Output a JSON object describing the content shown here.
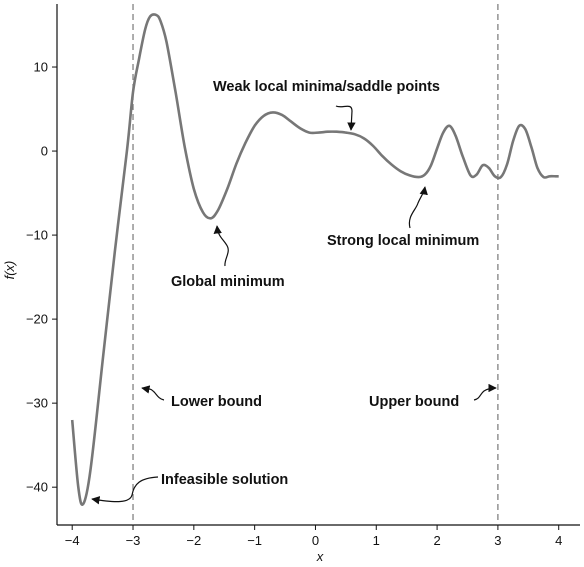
{
  "chart_data": {
    "type": "line",
    "xlabel": "x",
    "ylabel": "f(x)",
    "xlim": [
      -4.25,
      4.35
    ],
    "ylim": [
      -44.5,
      17.5
    ],
    "x_ticks": [
      -4,
      -3,
      -2,
      -1,
      0,
      1,
      2,
      3,
      4
    ],
    "y_ticks": [
      10,
      0,
      -10,
      -20,
      -30,
      -40
    ],
    "x_tick_labels": [
      "−4",
      "−3",
      "−2",
      "−1",
      "0",
      "1",
      "2",
      "3",
      "4"
    ],
    "y_tick_labels": [
      "10",
      "0",
      "−10",
      "−20",
      "−30",
      "−40"
    ],
    "grid": false,
    "line_color": "#777777",
    "series": [
      {
        "x": [
          -4.0,
          -3.9,
          -3.82,
          -3.7,
          -3.5,
          -3.3,
          -3.1,
          -3.0,
          -2.9,
          -2.8,
          -2.72,
          -2.62,
          -2.55,
          -2.45,
          -2.3,
          -2.15,
          -2.0,
          -1.85,
          -1.72,
          -1.6,
          -1.45,
          -1.3,
          -1.15,
          -1.0,
          -0.85,
          -0.7,
          -0.55,
          -0.4,
          -0.25,
          -0.1,
          0.05,
          0.2,
          0.35,
          0.5,
          0.65,
          0.8,
          0.95,
          1.1,
          1.25,
          1.4,
          1.55,
          1.7,
          1.8,
          1.9,
          2.0,
          2.1,
          2.2,
          2.3,
          2.42,
          2.55,
          2.65,
          2.75,
          2.85,
          2.95,
          3.05,
          3.15,
          3.25,
          3.35,
          3.45,
          3.55,
          3.65,
          3.75,
          3.85,
          3.95,
          4.0
        ],
        "y": [
          -32,
          -40,
          -42,
          -38,
          -25,
          -12,
          0,
          7,
          11,
          14.5,
          16,
          16.2,
          15.5,
          13,
          7,
          0.5,
          -4.5,
          -7.3,
          -8,
          -7,
          -4.5,
          -1.5,
          1,
          3,
          4.2,
          4.6,
          4.3,
          3.5,
          2.7,
          2.2,
          2.2,
          2.3,
          2.3,
          2.2,
          2.0,
          1.5,
          0.6,
          -0.6,
          -1.6,
          -2.4,
          -2.9,
          -3.1,
          -2.8,
          -1.7,
          0.3,
          2.2,
          3.0,
          1.9,
          -0.6,
          -2.9,
          -2.8,
          -1.7,
          -2.0,
          -3.0,
          -3.1,
          -1.6,
          1.2,
          3.0,
          2.6,
          0.5,
          -2.0,
          -3.1,
          -3.0,
          -3.0,
          -3.0
        ]
      }
    ],
    "bounds": [
      {
        "x": -3,
        "label": "Lower bound"
      },
      {
        "x": 3,
        "label": "Upper bound"
      }
    ],
    "annotations": [
      {
        "name": "global-minimum",
        "text": "Global minimum",
        "point": [
          -1.68,
          -8.0
        ]
      },
      {
        "name": "weak-local-minima",
        "text": "Weak local minima/saddle points",
        "point": [
          0.55,
          2.6
        ]
      },
      {
        "name": "strong-local-minimum",
        "text": "Strong local minimum",
        "point": [
          1.77,
          -3.4
        ]
      },
      {
        "name": "infeasible-solution",
        "text": "Infeasible solution",
        "point": [
          -3.78,
          -42.0
        ]
      },
      {
        "name": "lower-bound",
        "text": "Lower bound",
        "point": [
          -3.0,
          -28.2
        ]
      },
      {
        "name": "upper-bound",
        "text": "Upper bound",
        "point": [
          3.0,
          -28.2
        ]
      }
    ]
  }
}
